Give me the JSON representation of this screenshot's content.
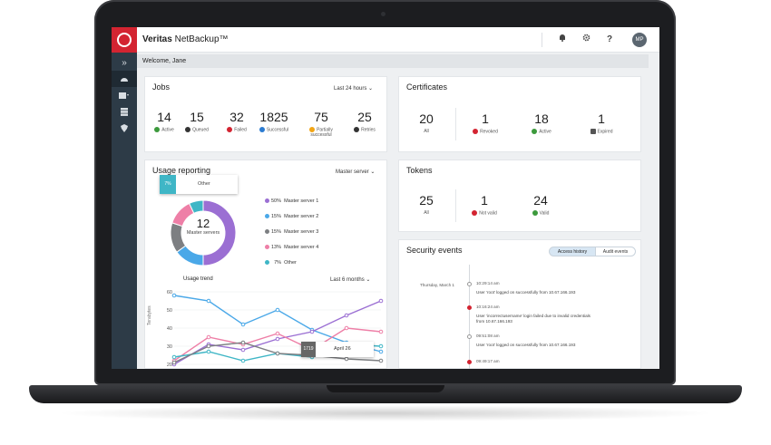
{
  "app": {
    "brand_bold": "Veritas",
    "brand_rest": " NetBackup™"
  },
  "topbar": {
    "bell_icon": "bell-icon",
    "gear_icon": "gear-icon",
    "help_label": "?",
    "avatar": "MP"
  },
  "welcome": "Welcome, Jane",
  "jobs": {
    "title": "Jobs",
    "range": "Last 24 hours",
    "stats": [
      {
        "value": "14",
        "label": "Active",
        "color": "#3c9a3c"
      },
      {
        "value": "15",
        "label": "Queued",
        "color": "#333333"
      },
      {
        "value": "32",
        "label": "Failed",
        "color": "#d32431"
      },
      {
        "value": "1825",
        "label": "Successful",
        "color": "#2b7bd1"
      },
      {
        "value": "75",
        "label": "Partially successful",
        "color": "#f2a515"
      },
      {
        "value": "25",
        "label": "Retries",
        "color": "#333333"
      }
    ]
  },
  "certificates": {
    "title": "Certificates",
    "stats": [
      {
        "value": "20",
        "label": "All"
      },
      {
        "value": "1",
        "label": "Revoked",
        "color": "#d32431"
      },
      {
        "value": "18",
        "label": "Active",
        "color": "#3c9a3c"
      },
      {
        "value": "1",
        "label": "Expired",
        "color": "#555555"
      }
    ]
  },
  "tokens": {
    "title": "Tokens",
    "stats": [
      {
        "value": "25",
        "label": "All"
      },
      {
        "value": "1",
        "label": "Not valid",
        "color": "#d32431"
      },
      {
        "value": "24",
        "label": "Valid",
        "color": "#3c9a3c"
      }
    ]
  },
  "usage": {
    "title": "Usage reporting",
    "filter": "Master server",
    "tooltip_pct": "7%",
    "tooltip_label": "Other",
    "donut_center_value": "12",
    "donut_center_label": "Master servers",
    "legend": [
      {
        "pct": "50%",
        "name": "Master server 1",
        "color": "#9b6fd3"
      },
      {
        "pct": "15%",
        "name": "Master server 2",
        "color": "#4aa8e8"
      },
      {
        "pct": "15%",
        "name": "Master server 3",
        "color": "#7d7f82"
      },
      {
        "pct": "13%",
        "name": "Master server 4",
        "color": "#ee7fa7"
      },
      {
        "pct": "7%",
        "name": "Other",
        "color": "#3fb6c6"
      }
    ],
    "trend_title": "Usage trend",
    "trend_range": "Last 6 months",
    "trend_ylabel": "Terabytes",
    "trend_tooltip_value": "1719",
    "trend_tooltip_label": "April 26"
  },
  "chart_data": {
    "type": "line",
    "ylim": [
      20,
      60
    ],
    "yticks": [
      "60",
      "50",
      "40",
      "30",
      "20"
    ],
    "x": [
      1,
      2,
      3,
      4,
      5,
      6,
      7
    ],
    "series": [
      {
        "values": [
          58,
          55,
          42,
          50,
          39,
          32,
          27
        ],
        "color": "#4aa8e8"
      },
      {
        "values": [
          20,
          31,
          28,
          34,
          38,
          47,
          55
        ],
        "color": "#9b6fd3"
      },
      {
        "values": [
          22,
          35,
          31,
          37,
          28,
          40,
          38
        ],
        "color": "#ee7fa7"
      },
      {
        "values": [
          24,
          27,
          22,
          26,
          24,
          31,
          30
        ],
        "color": "#3fb6c6"
      },
      {
        "values": [
          21,
          30,
          32,
          26,
          25,
          23,
          22
        ],
        "color": "#7d7f82"
      }
    ]
  },
  "security": {
    "title": "Security events",
    "tab_access": "Access history",
    "tab_audit": "Audit events",
    "date": "Thursday, March 1",
    "events": [
      {
        "time": "10:29:14 am",
        "text": "User ‘root’ logged on successfully from 10.67.166.193",
        "alert": false
      },
      {
        "time": "10:16:24 am",
        "text": "User ‘incorrectusername’ login failed due to invalid credentials",
        "text2": "from 10.67.166.193",
        "alert": true
      },
      {
        "time": "09:51:08 am",
        "text": "User ‘root’ logged on successfully from 10.67.166.193",
        "alert": false
      },
      {
        "time": "09:49:17 am",
        "text": "",
        "alert": true
      }
    ]
  }
}
